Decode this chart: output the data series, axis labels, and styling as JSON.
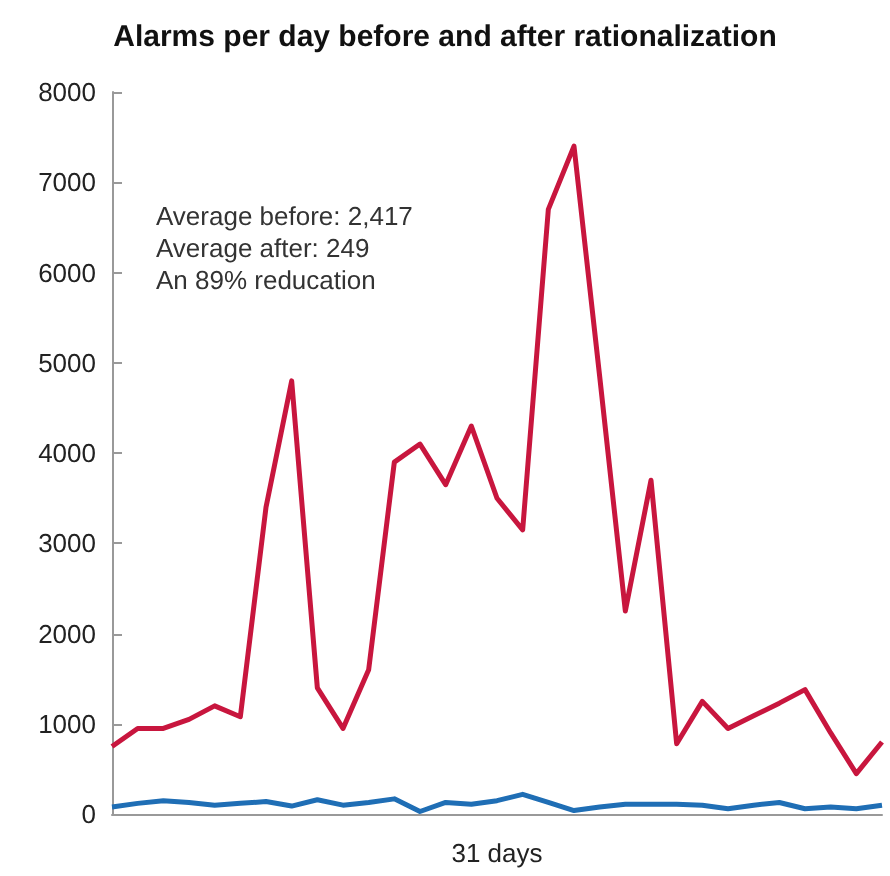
{
  "chart_data": {
    "type": "line",
    "title": "Alarms per day before and after rationalization",
    "xlabel": "31 days",
    "categories": [
      null,
      null,
      null,
      null,
      null,
      null,
      null,
      null,
      null,
      null,
      null,
      null,
      null,
      null,
      null,
      null,
      null,
      null,
      null,
      null,
      null,
      null,
      null,
      null,
      null,
      null,
      null,
      null,
      null,
      null,
      null
    ],
    "series": [
      {
        "color": "#c8163e",
        "values": [
          750,
          950,
          950,
          1050,
          1200,
          1080,
          3400,
          4800,
          1400,
          950,
          1600,
          3900,
          4100,
          3650,
          4300,
          3500,
          3150,
          6700,
          7400,
          4850,
          2250,
          3700,
          780,
          1250,
          950,
          1090,
          1230,
          1380,
          900,
          450,
          800
        ]
      },
      {
        "color": "#1f6eb5",
        "values": [
          80,
          120,
          150,
          130,
          100,
          120,
          140,
          90,
          160,
          100,
          130,
          170,
          30,
          130,
          110,
          150,
          220,
          130,
          40,
          80,
          110,
          110,
          110,
          100,
          60,
          100,
          130,
          60,
          80,
          60,
          100
        ]
      }
    ],
    "ylim": [
      0,
      8000
    ],
    "yticks": [
      0,
      1000,
      2000,
      3000,
      4000,
      5000,
      6000,
      7000,
      8000
    ],
    "grid": false,
    "marker": "none",
    "line_style": "solid",
    "annotations": [
      "Average before: 2,417",
      "Average after: 249",
      "An 89% reducation"
    ]
  }
}
